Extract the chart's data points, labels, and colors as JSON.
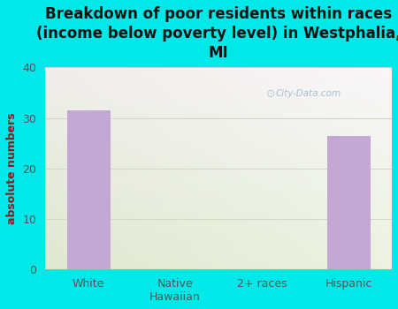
{
  "title": "Breakdown of poor residents within races\n(income below poverty level) in Westphalia,\nMI",
  "categories": [
    "White",
    "Native\nHawaiian",
    "2+ races",
    "Hispanic"
  ],
  "values": [
    31.5,
    0,
    0,
    26.5
  ],
  "bar_color": "#c4a8d4",
  "ylabel": "absolute numbers",
  "ylim": [
    0,
    40
  ],
  "yticks": [
    0,
    10,
    20,
    30,
    40
  ],
  "background_color": "#00e8e8",
  "grid_color": "#d0d8c8",
  "title_fontsize": 12,
  "title_color": "#111111",
  "tick_label_color": "#555555",
  "ylabel_color": "#8b1a1a",
  "watermark": "City-Data.com",
  "plot_bg_color": "#e8f0e0"
}
